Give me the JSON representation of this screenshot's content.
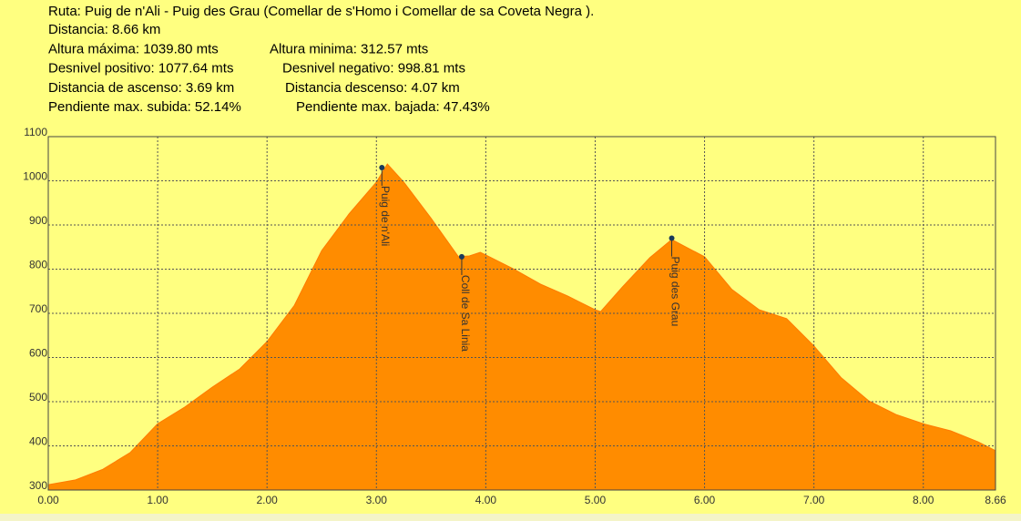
{
  "chart_data": {
    "type": "area",
    "title": "Ruta: Puig de n'Ali - Puig des Grau (Comellar de s'Homo i Comellar de sa Coveta Negra ).",
    "stats": [
      [
        "Distancia: 8.66 km"
      ],
      [
        "Altura máxima: 1039.80 mts",
        "Altura minima: 312.57 mts"
      ],
      [
        "Desnivel positivo: 1077.64 mts",
        "Desnivel negativo: 998.81 mts"
      ],
      [
        "Distancia de ascenso: 3.69 km",
        "Distancia descenso: 4.07 km"
      ],
      [
        "Pendiente max. subida: 52.14%",
        "Pendiente max. bajada: 47.43%"
      ]
    ],
    "x": [
      0,
      0.25,
      0.5,
      0.75,
      1.0,
      1.25,
      1.5,
      1.75,
      2.0,
      2.25,
      2.5,
      2.75,
      3.0,
      3.1,
      3.25,
      3.5,
      3.75,
      3.85,
      3.95,
      4.0,
      4.25,
      4.5,
      4.75,
      5.0,
      5.05,
      5.25,
      5.5,
      5.7,
      6.0,
      6.25,
      6.5,
      6.75,
      7.0,
      7.25,
      7.5,
      7.75,
      8.0,
      8.25,
      8.5,
      8.66
    ],
    "values": [
      312,
      323,
      347,
      385,
      450,
      488,
      533,
      574,
      636,
      718,
      842,
      925,
      997,
      1038,
      997,
      915,
      828,
      830,
      838,
      832,
      801,
      766,
      739,
      708,
      704,
      760,
      826,
      867,
      828,
      754,
      708,
      688,
      626,
      554,
      502,
      471,
      450,
      434,
      409,
      389
    ],
    "color": "#ff8c00",
    "background": "#ffff80",
    "xlim": [
      0,
      8.66
    ],
    "ylim": [
      300,
      1100
    ],
    "xticks": [
      {
        "value": 0,
        "label": "0.00"
      },
      {
        "value": 1,
        "label": "1.00"
      },
      {
        "value": 2,
        "label": "2.00"
      },
      {
        "value": 3,
        "label": "3.00"
      },
      {
        "value": 4,
        "label": "4.00"
      },
      {
        "value": 5,
        "label": "5.00"
      },
      {
        "value": 6,
        "label": "6.00"
      },
      {
        "value": 7,
        "label": "7.00"
      },
      {
        "value": 8,
        "label": "8.00"
      },
      {
        "value": 8.66,
        "label": "8.66"
      }
    ],
    "yticks": [
      300,
      400,
      500,
      600,
      700,
      800,
      900,
      1000,
      1100
    ],
    "grid": true,
    "annotations": [
      {
        "x": 3.05,
        "y": 1030,
        "label": "Puig de n'Ali"
      },
      {
        "x": 3.78,
        "y": 828,
        "label": "Coll de Sa Linia"
      },
      {
        "x": 5.7,
        "y": 870,
        "label": "Puig des Grau"
      }
    ]
  }
}
